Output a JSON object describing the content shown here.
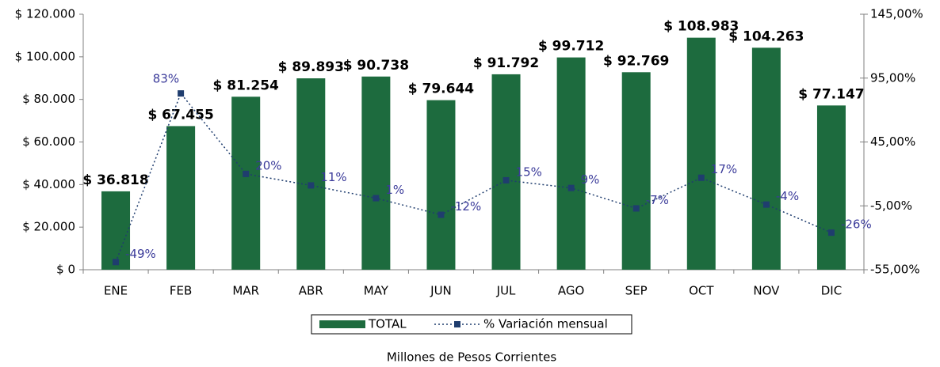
{
  "chart_data": {
    "type": "combo",
    "x_label": "Millones de Pesos Corrientes",
    "categories": [
      "ENE",
      "FEB",
      "MAR",
      "ABR",
      "MAY",
      "JUN",
      "JUL",
      "AGO",
      "SEP",
      "OCT",
      "NOV",
      "DIC"
    ],
    "series": [
      {
        "name": "TOTAL",
        "type": "bar",
        "color": "#1d6b3e",
        "values": [
          36818,
          67455,
          81254,
          89893,
          90738,
          79644,
          91792,
          99712,
          92769,
          108983,
          104263,
          77147
        ],
        "value_labels": [
          "$ 36.818",
          "$ 67.455",
          "$ 81.254",
          "$ 89.893",
          "$ 90.738",
          "$ 79.644",
          "$ 91.792",
          "$ 99.712",
          "$ 92.769",
          "$ 108.983",
          "$ 104.263",
          "$ 77.147"
        ]
      },
      {
        "name": "% Variación mensual",
        "type": "line",
        "axis": "y2",
        "color": "#1f3d6e",
        "values": [
          -49,
          83,
          20,
          11,
          1,
          -12,
          15,
          9,
          -7,
          17,
          -4,
          -26
        ],
        "value_labels": [
          "-49%",
          "83%",
          "20%",
          "11%",
          "1%",
          "-12%",
          "15%",
          "9%",
          "-7%",
          "17%",
          "-4%",
          "-26%"
        ]
      }
    ],
    "ylim": [
      0,
      120000
    ],
    "yticks": [
      {
        "value": 0,
        "label": "$ 0"
      },
      {
        "value": 20000,
        "label": "$ 20.000"
      },
      {
        "value": 40000,
        "label": "$ 40.000"
      },
      {
        "value": 60000,
        "label": "$ 60.000"
      },
      {
        "value": 80000,
        "label": "$ 80.000"
      },
      {
        "value": 100000,
        "label": "$ 100.000"
      },
      {
        "value": 120000,
        "label": "$ 120.000"
      }
    ],
    "y2lim": [
      -55,
      145
    ],
    "y2ticks": [
      {
        "value": -55,
        "label": "-55,00%"
      },
      {
        "value": -5,
        "label": "-5,00%"
      },
      {
        "value": 45,
        "label": "45,00%"
      },
      {
        "value": 95,
        "label": "95,00%"
      },
      {
        "value": 145,
        "label": "145,00%"
      }
    ],
    "grid": false,
    "legend": "bottom"
  }
}
